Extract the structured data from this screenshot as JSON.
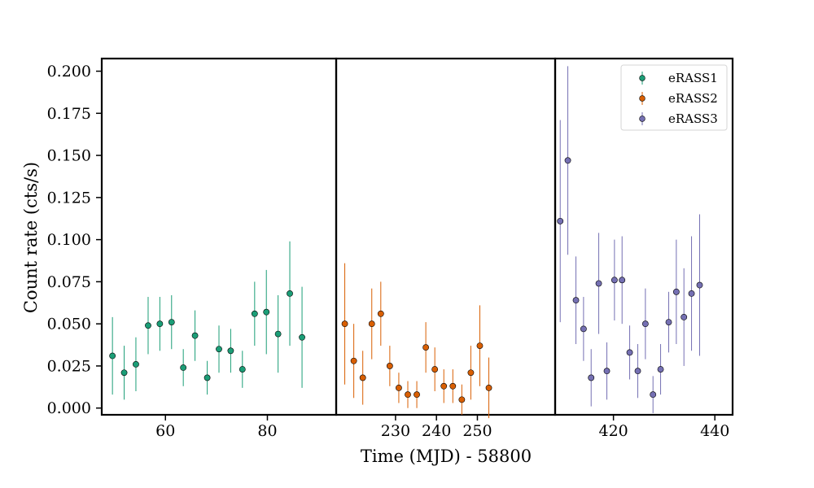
{
  "chart_data": {
    "type": "scatter",
    "xlabel": "Time (MJD) - 58800",
    "ylabel": "Count rate (cts/s)",
    "ylim": [
      -0.004,
      0.2075
    ],
    "yticks": [
      0.0,
      0.025,
      0.05,
      0.075,
      0.1,
      0.125,
      0.15,
      0.175,
      0.2
    ],
    "ytick_labels": [
      "0.000",
      "0.025",
      "0.050",
      "0.075",
      "0.100",
      "0.125",
      "0.150",
      "0.175",
      "0.200"
    ],
    "legend_position": "top-right",
    "panels": [
      {
        "xlim": [
          47.5,
          93.5
        ],
        "xticks": [
          60,
          80
        ],
        "xtick_labels": [
          "60",
          "80"
        ]
      },
      {
        "xlim": [
          215.5,
          269
        ],
        "xticks": [
          230,
          240,
          250
        ],
        "xtick_labels": [
          "230",
          "240",
          "250"
        ]
      },
      {
        "xlim": [
          408.5,
          443.5
        ],
        "xticks": [
          420,
          440
        ],
        "xtick_labels": [
          "420",
          "440"
        ]
      }
    ],
    "series": [
      {
        "name": "eRASS1",
        "color": "#1b9e77",
        "panel": 0,
        "points": [
          {
            "x": 49.6,
            "y": 0.031,
            "err": 0.023
          },
          {
            "x": 51.9,
            "y": 0.021,
            "err": 0.016
          },
          {
            "x": 54.2,
            "y": 0.026,
            "err": 0.016
          },
          {
            "x": 56.6,
            "y": 0.049,
            "err": 0.017
          },
          {
            "x": 58.9,
            "y": 0.05,
            "err": 0.016
          },
          {
            "x": 61.2,
            "y": 0.051,
            "err": 0.016
          },
          {
            "x": 63.5,
            "y": 0.024,
            "err": 0.011
          },
          {
            "x": 65.8,
            "y": 0.043,
            "err": 0.015
          },
          {
            "x": 68.2,
            "y": 0.018,
            "err": 0.01
          },
          {
            "x": 70.5,
            "y": 0.035,
            "err": 0.014
          },
          {
            "x": 72.8,
            "y": 0.034,
            "err": 0.013
          },
          {
            "x": 75.1,
            "y": 0.023,
            "err": 0.011
          },
          {
            "x": 77.5,
            "y": 0.056,
            "err": 0.019
          },
          {
            "x": 79.8,
            "y": 0.057,
            "err": 0.025
          },
          {
            "x": 82.1,
            "y": 0.044,
            "err": 0.023
          },
          {
            "x": 84.4,
            "y": 0.068,
            "err": 0.031
          },
          {
            "x": 86.8,
            "y": 0.042,
            "err": 0.03
          }
        ]
      },
      {
        "name": "eRASS2",
        "color": "#d95f02",
        "panel": 1,
        "points": [
          {
            "x": 217.6,
            "y": 0.05,
            "err": 0.036
          },
          {
            "x": 219.8,
            "y": 0.028,
            "err": 0.022
          },
          {
            "x": 222.0,
            "y": 0.018,
            "err": 0.016
          },
          {
            "x": 224.2,
            "y": 0.05,
            "err": 0.021
          },
          {
            "x": 226.4,
            "y": 0.056,
            "err": 0.019
          },
          {
            "x": 228.6,
            "y": 0.025,
            "err": 0.012
          },
          {
            "x": 230.8,
            "y": 0.012,
            "err": 0.009
          },
          {
            "x": 233.0,
            "y": 0.008,
            "err": 0.008
          },
          {
            "x": 235.2,
            "y": 0.008,
            "err": 0.008
          },
          {
            "x": 237.4,
            "y": 0.036,
            "err": 0.015
          },
          {
            "x": 239.6,
            "y": 0.023,
            "err": 0.013
          },
          {
            "x": 241.8,
            "y": 0.013,
            "err": 0.01
          },
          {
            "x": 244.0,
            "y": 0.013,
            "err": 0.01
          },
          {
            "x": 246.2,
            "y": 0.005,
            "err": 0.009
          },
          {
            "x": 248.4,
            "y": 0.021,
            "err": 0.016
          },
          {
            "x": 250.6,
            "y": 0.037,
            "err": 0.024
          },
          {
            "x": 252.8,
            "y": 0.012,
            "err": 0.018
          }
        ]
      },
      {
        "name": "eRASS3",
        "color": "#7570b3",
        "panel": 2,
        "points": [
          {
            "x": 409.5,
            "y": 0.111,
            "err": 0.06
          },
          {
            "x": 411.0,
            "y": 0.147,
            "err": 0.056
          },
          {
            "x": 412.6,
            "y": 0.064,
            "err": 0.026
          },
          {
            "x": 414.1,
            "y": 0.047,
            "err": 0.019
          },
          {
            "x": 415.6,
            "y": 0.018,
            "err": 0.017
          },
          {
            "x": 417.1,
            "y": 0.074,
            "err": 0.03
          },
          {
            "x": 418.7,
            "y": 0.022,
            "err": 0.017
          },
          {
            "x": 420.2,
            "y": 0.076,
            "err": 0.024
          },
          {
            "x": 421.7,
            "y": 0.076,
            "err": 0.026
          },
          {
            "x": 423.2,
            "y": 0.033,
            "err": 0.016
          },
          {
            "x": 424.8,
            "y": 0.022,
            "err": 0.016
          },
          {
            "x": 426.3,
            "y": 0.05,
            "err": 0.021
          },
          {
            "x": 427.8,
            "y": 0.008,
            "err": 0.011
          },
          {
            "x": 429.3,
            "y": 0.023,
            "err": 0.015
          },
          {
            "x": 430.9,
            "y": 0.051,
            "err": 0.018
          },
          {
            "x": 432.4,
            "y": 0.069,
            "err": 0.031
          },
          {
            "x": 433.9,
            "y": 0.054,
            "err": 0.029
          },
          {
            "x": 435.4,
            "y": 0.068,
            "err": 0.034
          },
          {
            "x": 437.0,
            "y": 0.073,
            "err": 0.042
          }
        ]
      }
    ]
  }
}
